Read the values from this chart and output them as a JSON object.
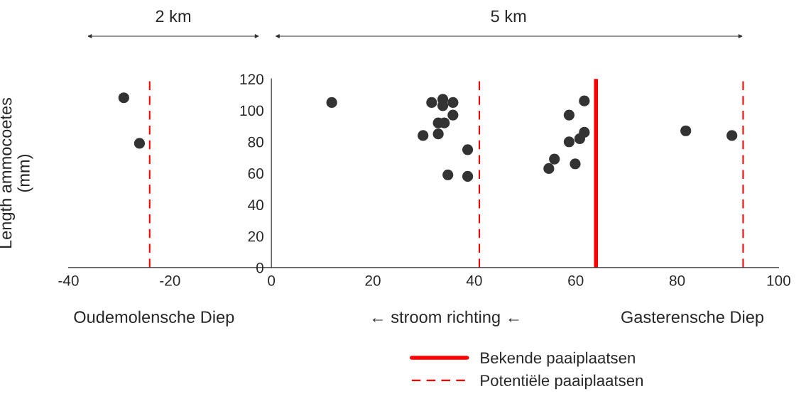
{
  "chart_data": {
    "type": "scatter",
    "ylabel": "Length ammocoetes\n(mm)",
    "series": [
      {
        "color": "#333333",
        "x": [
          -29.1,
          -26.0,
          11.9,
          31.6,
          33.8,
          33.8,
          35.8,
          35.8,
          32.9,
          34.1,
          29.9,
          32.9,
          38.7,
          34.8,
          38.7,
          61.7,
          58.7,
          58.7,
          60.8,
          61.7,
          55.8,
          54.7,
          59.9,
          81.7,
          90.8
        ],
        "values": [
          108,
          79,
          105,
          105,
          107,
          103,
          105,
          97,
          92,
          92,
          84,
          85,
          75,
          59,
          58,
          106,
          97,
          80,
          82,
          86,
          69,
          63,
          66,
          87,
          84
        ]
      }
    ],
    "xlim": [
      -40,
      100
    ],
    "xticks": [
      -40,
      -20,
      0,
      20,
      40,
      60,
      80,
      100
    ],
    "ylim": [
      0,
      120
    ],
    "yticks": [
      0,
      20,
      40,
      60,
      80,
      100,
      120
    ],
    "ref_lines": [
      {
        "axis": "x",
        "value": -24,
        "label": "Potentiële paaiplaatsen",
        "color": "#ff0000",
        "line_style": "dashed"
      },
      {
        "axis": "x",
        "value": 41,
        "color": "#ff0000",
        "line_style": "dashed"
      },
      {
        "axis": "x",
        "value": 64,
        "label": "Bekende paaiplaatsen",
        "color": "#ff0000",
        "line_style": "solid"
      },
      {
        "axis": "x",
        "value": 93,
        "color": "#ff0000",
        "line_style": "dashed"
      }
    ],
    "annotations": [
      "2 km",
      "5 km",
      "Oudemolensche Diep",
      "← stroom richting ←",
      "Gasterensche Diep"
    ],
    "marker": "circle",
    "grid": false,
    "legend": "bottom right"
  }
}
